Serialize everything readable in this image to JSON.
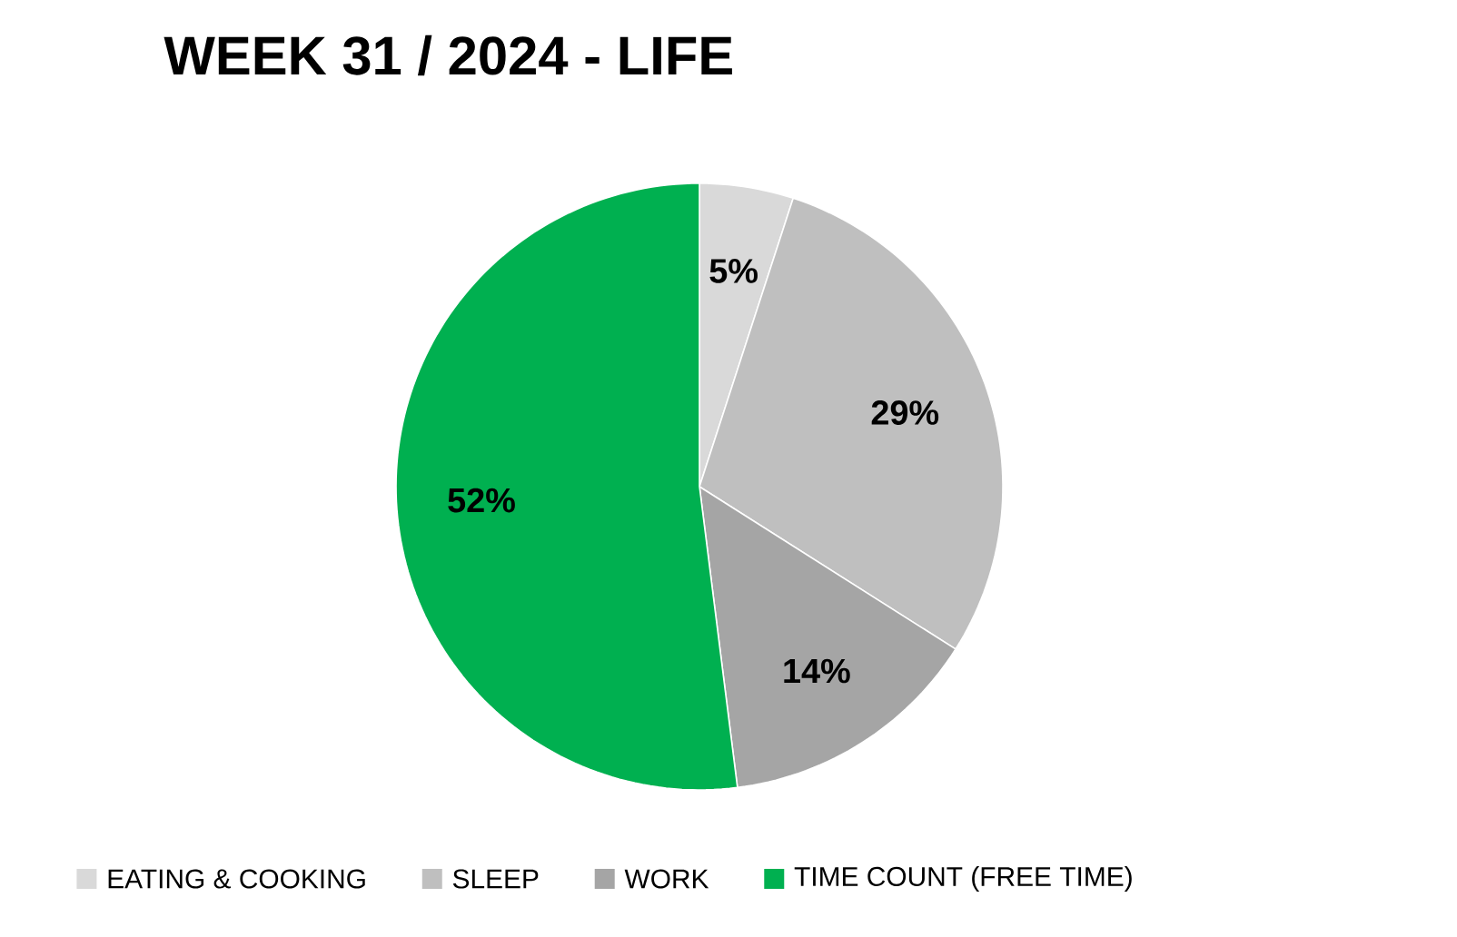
{
  "chart_data": {
    "type": "pie",
    "title": "WEEK 31 / 2024 - LIFE",
    "categories": [
      "EATING & COOKING",
      "SLEEP",
      "WORK",
      "TIME COUNT (FREE TIME)"
    ],
    "values": [
      5,
      29,
      14,
      52
    ],
    "colors": [
      "#d9d9d9",
      "#bfbfbf",
      "#a5a5a5",
      "#00b050"
    ],
    "value_labels": [
      "5%",
      "29%",
      "14%",
      "52%"
    ],
    "legend": "bottom"
  }
}
